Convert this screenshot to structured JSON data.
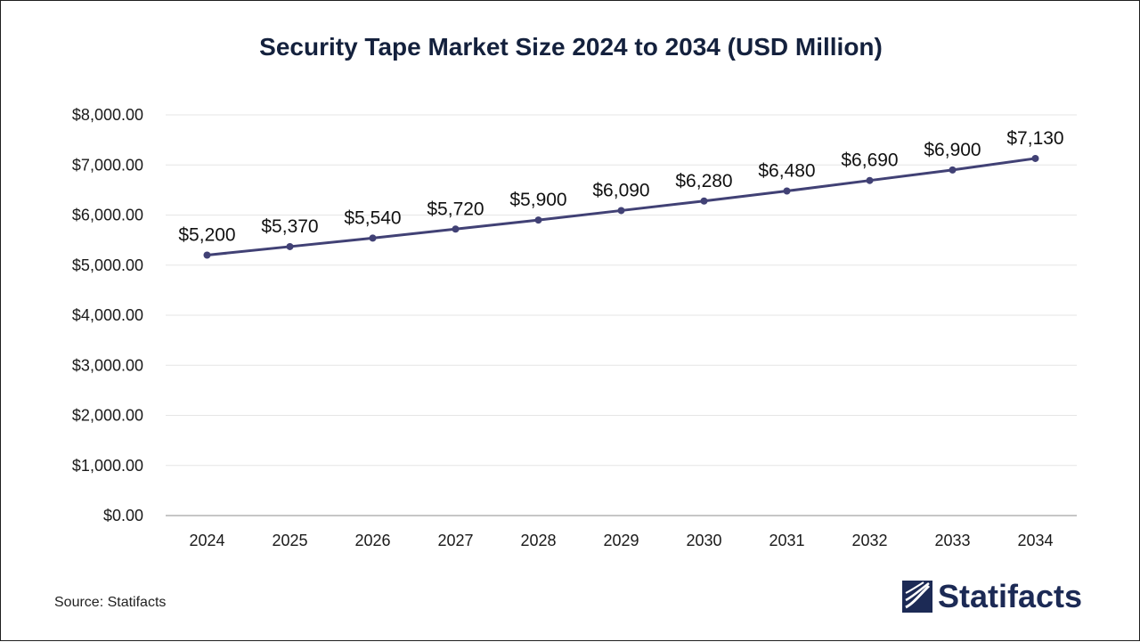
{
  "chart_data": {
    "type": "line",
    "title": "Security Tape Market Size 2024 to 2034 (USD Million)",
    "categories": [
      "2024",
      "2025",
      "2026",
      "2027",
      "2028",
      "2029",
      "2030",
      "2031",
      "2032",
      "2033",
      "2034"
    ],
    "series": [
      {
        "values": [
          5200,
          5370,
          5540,
          5720,
          5900,
          6090,
          6280,
          6480,
          6690,
          6900,
          7130
        ],
        "labels": [
          "$5,200",
          "$5,370",
          "$5,540",
          "$5,720",
          "$5,900",
          "$6,090",
          "$6,280",
          "$6,480",
          "$6,690",
          "$6,900",
          "$7,130"
        ],
        "color": "#414175"
      }
    ],
    "ylim": [
      0,
      8000
    ],
    "yticks": [
      0,
      1000,
      2000,
      3000,
      4000,
      5000,
      6000,
      7000,
      8000
    ],
    "ytick_labels": [
      "$0.00",
      "$1,000.00",
      "$2,000.00",
      "$3,000.00",
      "$4,000.00",
      "$5,000.00",
      "$6,000.00",
      "$7,000.00",
      "$8,000.00"
    ],
    "grid": true,
    "legend": "none"
  },
  "footer": {
    "source": "Source: Statifacts",
    "brand": "Statifacts"
  },
  "colors": {
    "title": "#14213d",
    "line": "#414175",
    "grid": "#e6e6e6",
    "brand": "#1c2a55"
  },
  "icons": {
    "brand_logo": "statifacts-logo-icon"
  }
}
